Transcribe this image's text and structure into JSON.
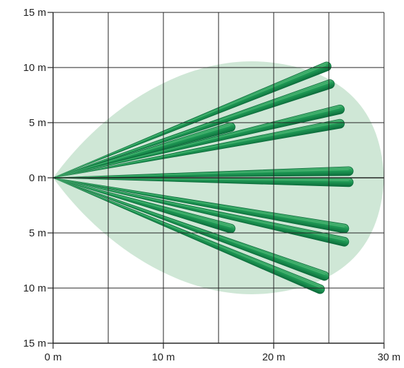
{
  "axis": {
    "y_labels": [
      {
        "value": 15,
        "text": "15 m"
      },
      {
        "value": 10,
        "text": "10 m"
      },
      {
        "value": 5,
        "text": "5 m"
      },
      {
        "value": 0,
        "text": "0 m"
      },
      {
        "value": -5,
        "text": "5 m"
      },
      {
        "value": -10,
        "text": "10 m"
      },
      {
        "value": -15,
        "text": "15 m"
      }
    ],
    "x_labels": [
      {
        "value": 0,
        "text": "0 m"
      },
      {
        "value": 10,
        "text": "10 m"
      },
      {
        "value": 20,
        "text": "20 m"
      },
      {
        "value": 30,
        "text": "30 m"
      }
    ],
    "x_range": [
      0,
      30
    ],
    "y_range": [
      -15,
      15
    ],
    "grid_step_m": 5
  },
  "coverage_area": {
    "max_range_m": 30,
    "max_half_width_m": 10.5
  },
  "beams": [
    {
      "id": "beam-upper-outer-long",
      "end_x_m": 24.8,
      "end_y_m": 10.1
    },
    {
      "id": "beam-upper-outer-short",
      "end_x_m": 25.1,
      "end_y_m": 8.5
    },
    {
      "id": "beam-upper-inner-stub",
      "end_x_m": 16.1,
      "end_y_m": 4.6
    },
    {
      "id": "beam-upper-mid-long",
      "end_x_m": 26.0,
      "end_y_m": 6.2
    },
    {
      "id": "beam-upper-mid-short",
      "end_x_m": 26.0,
      "end_y_m": 4.9
    },
    {
      "id": "beam-center-upper",
      "end_x_m": 26.8,
      "end_y_m": 0.6
    },
    {
      "id": "beam-center-lower",
      "end_x_m": 26.8,
      "end_y_m": -0.4
    },
    {
      "id": "beam-lower-mid-short",
      "end_x_m": 26.4,
      "end_y_m": -4.6
    },
    {
      "id": "beam-lower-mid-long",
      "end_x_m": 26.4,
      "end_y_m": -5.8
    },
    {
      "id": "beam-lower-inner-stub",
      "end_x_m": 16.1,
      "end_y_m": -4.6
    },
    {
      "id": "beam-lower-outer-short",
      "end_x_m": 24.6,
      "end_y_m": -8.9
    },
    {
      "id": "beam-lower-outer-long",
      "end_x_m": 24.2,
      "end_y_m": -10.1
    }
  ],
  "colors": {
    "coverage": "#cfe7d6",
    "beam_dark": "#0b6b3a",
    "beam_main": "#1f9a55",
    "beam_light": "#5cc07f",
    "grid": "#222222"
  }
}
